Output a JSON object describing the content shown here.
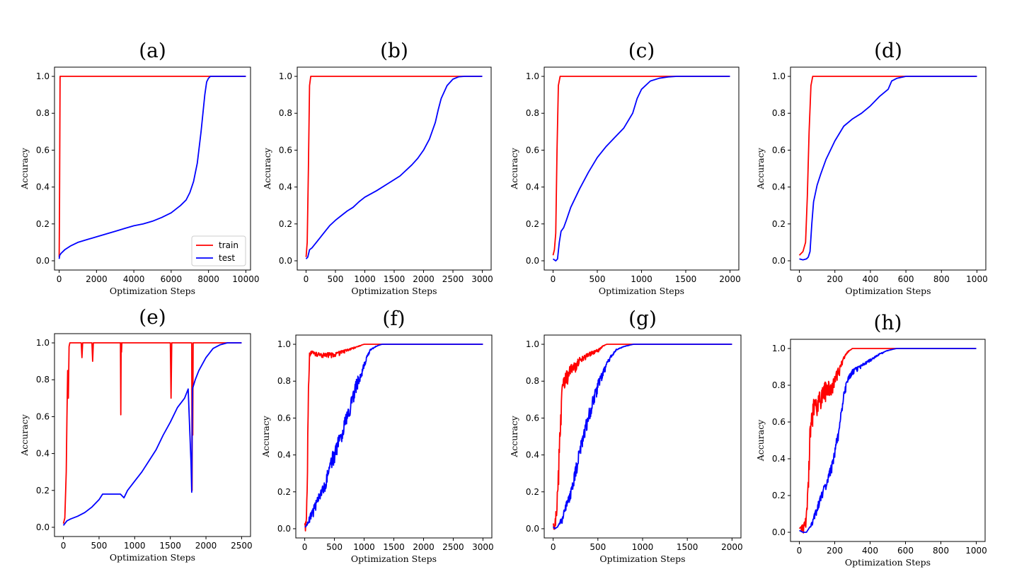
{
  "chart_data": [
    {
      "panel": "(a)",
      "type": "line",
      "xlabel": "Optimization Steps",
      "ylabel": "Accuracy",
      "xlim": [
        -250,
        10250
      ],
      "ylim": [
        -0.05,
        1.05
      ],
      "xticks": [
        0,
        2000,
        4000,
        6000,
        8000,
        10000
      ],
      "yticks": [
        0.0,
        0.2,
        0.4,
        0.6,
        0.8,
        1.0
      ],
      "ytick_labels": [
        "0.0",
        "0.2",
        "0.4",
        "0.6",
        "0.8",
        "1.0"
      ],
      "legend": {
        "position": "lower-right",
        "entries": [
          "train",
          "test"
        ]
      },
      "series": [
        {
          "name": "train",
          "color": "#ff0000",
          "noisy": false,
          "noise": 0,
          "x": [
            0,
            20,
            50,
            100,
            10000
          ],
          "values": [
            0.02,
            0.3,
            1.0,
            1.0,
            1.0
          ]
        },
        {
          "name": "test",
          "color": "#0000ff",
          "noisy": false,
          "noise": 0,
          "x": [
            0,
            30,
            100,
            300,
            600,
            1000,
            1500,
            2000,
            2500,
            3000,
            3500,
            4000,
            4500,
            5000,
            5500,
            6000,
            6500,
            6800,
            7000,
            7200,
            7400,
            7600,
            7800,
            7900,
            8000,
            8100,
            8500,
            9000,
            10000
          ],
          "values": [
            0.01,
            0.03,
            0.04,
            0.06,
            0.08,
            0.1,
            0.115,
            0.13,
            0.145,
            0.16,
            0.175,
            0.19,
            0.2,
            0.215,
            0.235,
            0.26,
            0.3,
            0.33,
            0.37,
            0.43,
            0.53,
            0.7,
            0.9,
            0.97,
            0.99,
            1.0,
            1.0,
            1.0,
            1.0
          ]
        }
      ]
    },
    {
      "panel": "(b)",
      "type": "line",
      "xlabel": "Optimization Steps",
      "ylabel": "Accuracy",
      "xlim": [
        -150,
        3150
      ],
      "ylim": [
        -0.05,
        1.05
      ],
      "xticks": [
        0,
        500,
        1000,
        1500,
        2000,
        2500,
        3000
      ],
      "yticks": [
        0.0,
        0.2,
        0.4,
        0.6,
        0.8,
        1.0
      ],
      "ytick_labels": [
        "0.0",
        "0.2",
        "0.4",
        "0.6",
        "0.8",
        "1.0"
      ],
      "series": [
        {
          "name": "train",
          "color": "#ff0000",
          "noisy": false,
          "noise": 0,
          "x": [
            0,
            20,
            40,
            60,
            80,
            3000
          ],
          "values": [
            0.02,
            0.1,
            0.5,
            0.95,
            1.0,
            1.0
          ]
        },
        {
          "name": "test",
          "color": "#0000ff",
          "noisy": false,
          "noise": 0,
          "x": [
            0,
            30,
            60,
            100,
            200,
            300,
            400,
            500,
            600,
            700,
            800,
            900,
            1000,
            1200,
            1400,
            1600,
            1800,
            1900,
            2000,
            2100,
            2200,
            2250,
            2300,
            2400,
            2500,
            2600,
            2700,
            3000
          ],
          "values": [
            0.01,
            0.02,
            0.06,
            0.07,
            0.11,
            0.15,
            0.19,
            0.22,
            0.245,
            0.27,
            0.29,
            0.32,
            0.345,
            0.38,
            0.42,
            0.46,
            0.52,
            0.555,
            0.6,
            0.66,
            0.75,
            0.82,
            0.88,
            0.95,
            0.985,
            0.998,
            1.0,
            1.0
          ]
        }
      ]
    },
    {
      "panel": "(c)",
      "type": "line",
      "xlabel": "Optimization Steps",
      "ylabel": "Accuracy",
      "xlim": [
        -100,
        2100
      ],
      "ylim": [
        -0.05,
        1.05
      ],
      "xticks": [
        0,
        500,
        1000,
        1500,
        2000
      ],
      "yticks": [
        0.0,
        0.2,
        0.4,
        0.6,
        0.8,
        1.0
      ],
      "ytick_labels": [
        "0.0",
        "0.2",
        "0.4",
        "0.6",
        "0.8",
        "1.0"
      ],
      "series": [
        {
          "name": "train",
          "color": "#ff0000",
          "noisy": false,
          "noise": 0,
          "x": [
            0,
            15,
            30,
            45,
            60,
            80,
            2000
          ],
          "values": [
            0.03,
            0.06,
            0.15,
            0.6,
            0.95,
            1.0,
            1.0
          ]
        },
        {
          "name": "test",
          "color": "#0000ff",
          "noisy": false,
          "noise": 0,
          "x": [
            0,
            30,
            50,
            70,
            90,
            120,
            150,
            200,
            300,
            400,
            500,
            600,
            700,
            800,
            900,
            950,
            1000,
            1100,
            1200,
            1300,
            1400,
            2000
          ],
          "values": [
            0.01,
            0.0,
            0.01,
            0.1,
            0.16,
            0.18,
            0.22,
            0.29,
            0.39,
            0.48,
            0.56,
            0.62,
            0.67,
            0.72,
            0.8,
            0.88,
            0.93,
            0.975,
            0.99,
            0.997,
            1.0,
            1.0
          ]
        }
      ]
    },
    {
      "panel": "(d)",
      "type": "line",
      "xlabel": "Optimization Steps",
      "ylabel": "Accuracy",
      "xlim": [
        -50,
        1050
      ],
      "ylim": [
        -0.05,
        1.05
      ],
      "xticks": [
        0,
        200,
        400,
        600,
        800,
        1000
      ],
      "yticks": [
        0.0,
        0.2,
        0.4,
        0.6,
        0.8,
        1.0
      ],
      "ytick_labels": [
        "0.0",
        "0.2",
        "0.4",
        "0.6",
        "0.8",
        "1.0"
      ],
      "series": [
        {
          "name": "train",
          "color": "#ff0000",
          "noisy": false,
          "noise": 0,
          "x": [
            0,
            20,
            35,
            45,
            55,
            65,
            75,
            1000
          ],
          "values": [
            0.03,
            0.05,
            0.1,
            0.35,
            0.7,
            0.95,
            1.0,
            1.0
          ]
        },
        {
          "name": "test",
          "color": "#0000ff",
          "noisy": false,
          "noise": 0,
          "x": [
            0,
            20,
            40,
            50,
            60,
            70,
            80,
            100,
            120,
            150,
            200,
            250,
            300,
            350,
            400,
            450,
            500,
            520,
            550,
            600,
            650,
            1000
          ],
          "values": [
            0.01,
            0.005,
            0.01,
            0.02,
            0.05,
            0.2,
            0.32,
            0.41,
            0.47,
            0.55,
            0.65,
            0.73,
            0.77,
            0.8,
            0.84,
            0.89,
            0.93,
            0.975,
            0.99,
            1.0,
            1.0,
            1.0
          ]
        }
      ]
    },
    {
      "panel": "(e)",
      "type": "line",
      "xlabel": "Optimization Steps",
      "ylabel": "Accuracy",
      "xlim": [
        -125,
        2625
      ],
      "ylim": [
        -0.05,
        1.05
      ],
      "xticks": [
        0,
        500,
        1000,
        1500,
        2000,
        2500
      ],
      "yticks": [
        0.0,
        0.2,
        0.4,
        0.6,
        0.8,
        1.0
      ],
      "ytick_labels": [
        "0.0",
        "0.2",
        "0.4",
        "0.6",
        "0.8",
        "1.0"
      ],
      "series": [
        {
          "name": "train",
          "color": "#ff0000",
          "noisy": false,
          "noise": 0,
          "x": [
            0,
            20,
            40,
            50,
            60,
            70,
            80,
            90,
            100,
            200,
            250,
            260,
            270,
            300,
            400,
            410,
            420,
            500,
            800,
            805,
            810,
            815,
            820,
            1000,
            1500,
            1510,
            1520,
            1800,
            1805,
            1810,
            1815,
            1820,
            2100,
            2500
          ],
          "values": [
            0.02,
            0.05,
            0.3,
            0.6,
            0.85,
            0.7,
            0.98,
            1.0,
            1.0,
            1.0,
            1.0,
            0.92,
            1.0,
            1.0,
            1.0,
            0.9,
            1.0,
            1.0,
            1.0,
            0.61,
            1.0,
            0.95,
            1.0,
            1.0,
            1.0,
            0.7,
            1.0,
            1.0,
            0.2,
            0.85,
            0.5,
            1.0,
            1.0,
            1.0
          ]
        },
        {
          "name": "test",
          "color": "#0000ff",
          "noisy": false,
          "noise": 0,
          "x": [
            0,
            20,
            50,
            100,
            200,
            300,
            400,
            500,
            550,
            600,
            700,
            800,
            850,
            900,
            1000,
            1100,
            1200,
            1300,
            1400,
            1500,
            1600,
            1700,
            1750,
            1790,
            1800,
            1810,
            1850,
            1900,
            2000,
            2100,
            2200,
            2300,
            2400,
            2500
          ],
          "values": [
            0.01,
            0.02,
            0.035,
            0.045,
            0.06,
            0.08,
            0.11,
            0.15,
            0.18,
            0.18,
            0.18,
            0.18,
            0.16,
            0.2,
            0.25,
            0.3,
            0.36,
            0.42,
            0.5,
            0.57,
            0.65,
            0.7,
            0.75,
            0.35,
            0.19,
            0.75,
            0.8,
            0.85,
            0.92,
            0.97,
            0.99,
            1.0,
            1.0,
            1.0
          ]
        }
      ]
    },
    {
      "panel": "(f)",
      "type": "line",
      "xlabel": "Optimization Steps",
      "ylabel": "Accuracy",
      "xlim": [
        -150,
        3150
      ],
      "ylim": [
        -0.05,
        1.05
      ],
      "xticks": [
        0,
        500,
        1000,
        1500,
        2000,
        2500,
        3000
      ],
      "yticks": [
        0.0,
        0.2,
        0.4,
        0.6,
        0.8,
        1.0
      ],
      "ytick_labels": [
        "0.0",
        "0.2",
        "0.4",
        "0.6",
        "0.8",
        "1.0"
      ],
      "series": [
        {
          "name": "train",
          "color": "#ff0000",
          "noisy": true,
          "noise": 0.12,
          "x": [
            0,
            20,
            40,
            60,
            80,
            100,
            150,
            200,
            300,
            400,
            500,
            600,
            700,
            800,
            900,
            1000,
            1100,
            1200,
            3000
          ],
          "values": [
            0.02,
            0.05,
            0.2,
            0.7,
            0.95,
            0.96,
            0.96,
            0.95,
            0.95,
            0.95,
            0.95,
            0.96,
            0.97,
            0.98,
            0.99,
            1.0,
            1.0,
            1.0,
            1.0
          ]
        },
        {
          "name": "test",
          "color": "#0000ff",
          "noisy": true,
          "noise": 0.08,
          "x": [
            0,
            20,
            50,
            100,
            200,
            300,
            400,
            500,
            600,
            700,
            800,
            850,
            900,
            950,
            1000,
            1050,
            1100,
            1200,
            1300,
            1400,
            3000
          ],
          "values": [
            0.01,
            0.01,
            0.04,
            0.08,
            0.15,
            0.23,
            0.33,
            0.43,
            0.52,
            0.62,
            0.72,
            0.78,
            0.82,
            0.85,
            0.9,
            0.94,
            0.97,
            0.99,
            1.0,
            1.0,
            1.0
          ]
        }
      ]
    },
    {
      "panel": "(g)",
      "type": "line",
      "xlabel": "Optimization Steps",
      "ylabel": "Accuracy",
      "xlim": [
        -100,
        2100
      ],
      "ylim": [
        -0.05,
        1.05
      ],
      "xticks": [
        0,
        500,
        1000,
        1500,
        2000
      ],
      "yticks": [
        0.0,
        0.2,
        0.4,
        0.6,
        0.8,
        1.0
      ],
      "ytick_labels": [
        "0.0",
        "0.2",
        "0.4",
        "0.6",
        "0.8",
        "1.0"
      ],
      "series": [
        {
          "name": "train",
          "color": "#ff0000",
          "noisy": true,
          "noise": 0.14,
          "x": [
            0,
            20,
            40,
            60,
            80,
            100,
            150,
            200,
            300,
            400,
            500,
            550,
            600,
            650,
            700,
            2000
          ],
          "values": [
            0.02,
            0.05,
            0.12,
            0.35,
            0.6,
            0.78,
            0.85,
            0.88,
            0.92,
            0.95,
            0.97,
            0.99,
            1.0,
            1.0,
            1.0,
            1.0
          ]
        },
        {
          "name": "test",
          "color": "#0000ff",
          "noisy": true,
          "noise": 0.07,
          "x": [
            0,
            20,
            50,
            100,
            150,
            200,
            250,
            300,
            350,
            400,
            450,
            500,
            550,
            600,
            650,
            700,
            800,
            900,
            1000,
            2000
          ],
          "values": [
            0.01,
            0.0,
            0.01,
            0.06,
            0.14,
            0.22,
            0.33,
            0.44,
            0.54,
            0.63,
            0.72,
            0.79,
            0.85,
            0.9,
            0.94,
            0.97,
            0.99,
            1.0,
            1.0,
            1.0
          ]
        }
      ]
    },
    {
      "panel": "(h)",
      "type": "line",
      "xlabel": "Optimization Steps",
      "ylabel": "Accuracy",
      "xlim": [
        -50,
        1050
      ],
      "ylim": [
        -0.05,
        1.05
      ],
      "xticks": [
        0,
        200,
        400,
        600,
        800,
        1000
      ],
      "yticks": [
        0.0,
        0.2,
        0.4,
        0.6,
        0.8,
        1.0
      ],
      "ytick_labels": [
        "0.0",
        "0.2",
        "0.4",
        "0.6",
        "0.8",
        "1.0"
      ],
      "series": [
        {
          "name": "train",
          "color": "#ff0000",
          "noisy": true,
          "noise": 0.12,
          "x": [
            0,
            20,
            30,
            40,
            50,
            60,
            70,
            80,
            100,
            120,
            150,
            180,
            200,
            230,
            250,
            270,
            300,
            320,
            1000
          ],
          "values": [
            0.02,
            0.04,
            0.05,
            0.1,
            0.3,
            0.55,
            0.65,
            0.7,
            0.72,
            0.76,
            0.8,
            0.82,
            0.85,
            0.9,
            0.95,
            0.98,
            1.0,
            1.0,
            1.0
          ]
        },
        {
          "name": "test",
          "color": "#0000ff",
          "noisy": true,
          "noise": 0.06,
          "x": [
            0,
            20,
            40,
            60,
            80,
            100,
            120,
            150,
            180,
            200,
            220,
            240,
            260,
            280,
            300,
            350,
            400,
            450,
            500,
            550,
            600,
            1000
          ],
          "values": [
            0.01,
            0.0,
            0.0,
            0.03,
            0.08,
            0.14,
            0.2,
            0.27,
            0.36,
            0.45,
            0.55,
            0.68,
            0.8,
            0.85,
            0.88,
            0.91,
            0.94,
            0.97,
            0.99,
            1.0,
            1.0,
            1.0
          ]
        }
      ]
    }
  ]
}
